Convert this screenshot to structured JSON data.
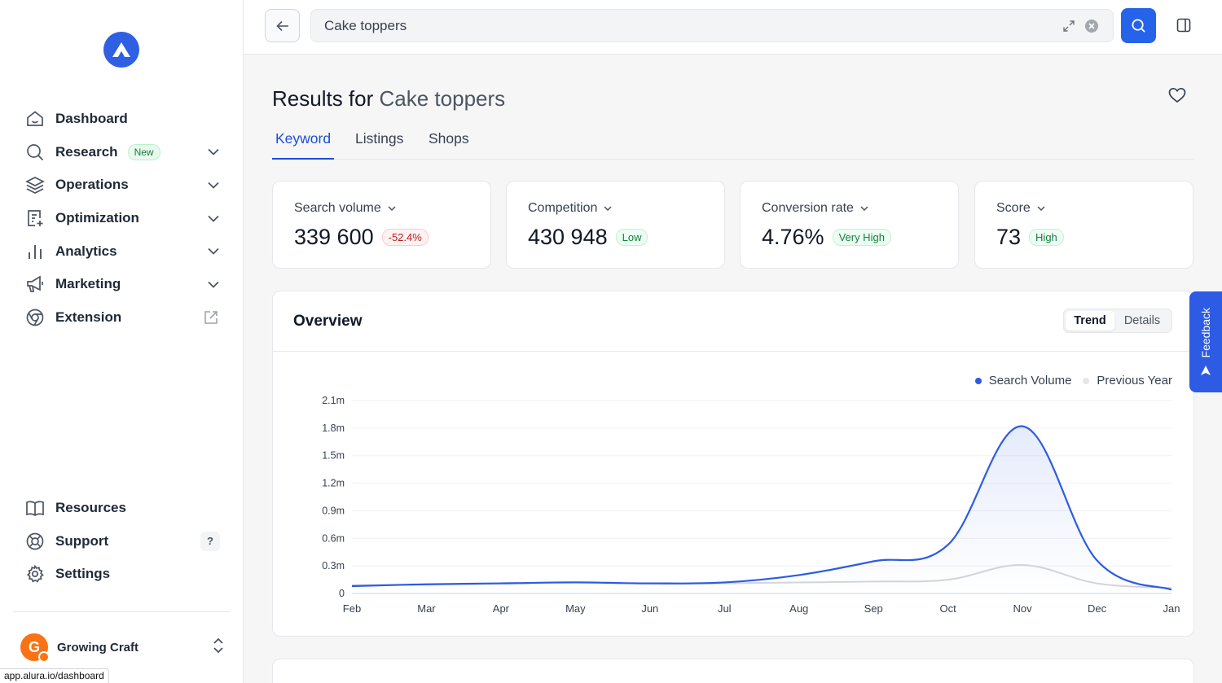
{
  "colors": {
    "accent": "#2563eb",
    "series": "#2d5be3",
    "prev": "#d1d5db"
  },
  "sidebar": {
    "items": [
      {
        "label": "Dashboard",
        "icon": "house-icon"
      },
      {
        "label": "Research",
        "icon": "search-icon",
        "badge": "New"
      },
      {
        "label": "Operations",
        "icon": "layers-icon"
      },
      {
        "label": "Optimization",
        "icon": "document-plus-icon"
      },
      {
        "label": "Analytics",
        "icon": "bar-chart-icon"
      },
      {
        "label": "Marketing",
        "icon": "megaphone-icon"
      },
      {
        "label": "Extension",
        "icon": "chrome-icon"
      }
    ],
    "bottom": [
      {
        "label": "Resources",
        "icon": "book-icon"
      },
      {
        "label": "Support",
        "icon": "lifebuoy-icon",
        "hint": "?"
      },
      {
        "label": "Settings",
        "icon": "gear-icon"
      }
    ],
    "account": {
      "name": "Growing Craft",
      "initial": "G"
    },
    "status_url": "app.alura.io/dashboard"
  },
  "search": {
    "value": "Cake toppers"
  },
  "results": {
    "prefix": "Results for",
    "query": "Cake toppers"
  },
  "tabs": [
    {
      "label": "Keyword"
    },
    {
      "label": "Listings"
    },
    {
      "label": "Shops"
    }
  ],
  "metrics": [
    {
      "title": "Search volume",
      "value": "339 600",
      "pill": "-52.4%"
    },
    {
      "title": "Competition",
      "value": "430 948",
      "pill": "Low"
    },
    {
      "title": "Conversion rate",
      "value": "4.76%",
      "pill": "Very High"
    },
    {
      "title": "Score",
      "value": "73",
      "pill": "High"
    }
  ],
  "overview": {
    "title": "Overview",
    "seg_on": "Trend",
    "seg_off": "Details"
  },
  "feedback": "Feedback",
  "chart_data": {
    "type": "line",
    "title": "Overview",
    "categories": [
      "Feb",
      "Mar",
      "Apr",
      "May",
      "Jun",
      "Jul",
      "Aug",
      "Sep",
      "Oct",
      "Nov",
      "Dec",
      "Jan"
    ],
    "yticks": [
      "2.1m",
      "1.8m",
      "1.5m",
      "1.2m",
      "0.9m",
      "0.6m",
      "0.3m",
      "0"
    ],
    "ylim": [
      0,
      2100000
    ],
    "legend": [
      "Search Volume",
      "Previous Year"
    ],
    "legend_position": "top-right",
    "series": [
      {
        "name": "Search Volume",
        "values": [
          80000,
          100000,
          110000,
          120000,
          110000,
          120000,
          200000,
          350000,
          530000,
          1820000,
          360000,
          40000
        ]
      },
      {
        "name": "Previous Year",
        "values": [
          90000,
          95000,
          105000,
          125000,
          105000,
          110000,
          120000,
          130000,
          150000,
          310000,
          110000,
          60000
        ]
      }
    ]
  }
}
